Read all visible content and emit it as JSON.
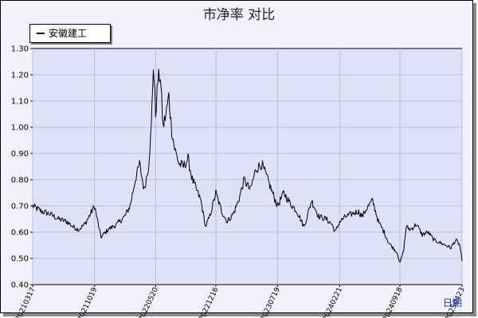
{
  "title": "市净率  对比",
  "legend": {
    "label": "安徽建工"
  },
  "x_unit_label": "日期",
  "colors": {
    "plot_bg": "#dde2f6",
    "grid": "#b7bde6",
    "line": "#000000",
    "frame_bg": "#f2f2fb"
  },
  "chart_data": {
    "type": "line",
    "title": "市净率  对比",
    "xlabel": "日期",
    "ylabel": "",
    "ylim": [
      0.4,
      1.3
    ],
    "yticks": [
      "0.40",
      "0.50",
      "0.60",
      "0.70",
      "0.80",
      "0.90",
      "1.00",
      "1.10",
      "1.20",
      "1.30"
    ],
    "xticks": [
      "20210317",
      "20211019",
      "20220520",
      "20221216",
      "20230719",
      "20240221",
      "20240918",
      "20250423"
    ],
    "grid": true,
    "legend_position": "top-left",
    "series": [
      {
        "name": "安徽建工",
        "x": [
          "2021-03-17",
          "2021-04-15",
          "2021-05-15",
          "2021-06-15",
          "2021-07-15",
          "2021-08-05",
          "2021-08-25",
          "2021-09-15",
          "2021-10-05",
          "2021-10-19",
          "2021-11-10",
          "2021-12-05",
          "2022-01-05",
          "2022-02-01",
          "2022-02-20",
          "2022-03-10",
          "2022-03-25",
          "2022-04-10",
          "2022-04-25",
          "2022-05-05",
          "2022-05-12",
          "2022-05-20",
          "2022-05-28",
          "2022-06-05",
          "2022-06-15",
          "2022-06-25",
          "2022-07-05",
          "2022-07-15",
          "2022-07-25",
          "2022-08-10",
          "2022-08-25",
          "2022-09-10",
          "2022-09-25",
          "2022-10-10",
          "2022-10-25",
          "2022-11-10",
          "2022-11-25",
          "2022-12-16",
          "2023-01-05",
          "2023-01-25",
          "2023-02-15",
          "2023-03-05",
          "2023-03-25",
          "2023-04-15",
          "2023-05-05",
          "2023-05-25",
          "2023-06-15",
          "2023-07-05",
          "2023-07-19",
          "2023-08-10",
          "2023-09-01",
          "2023-09-25",
          "2023-10-20",
          "2023-11-15",
          "2023-12-10",
          "2024-01-05",
          "2024-01-25",
          "2024-02-06",
          "2024-02-21",
          "2024-03-15",
          "2024-04-05",
          "2024-04-25",
          "2024-05-10",
          "2024-05-25",
          "2024-06-15",
          "2024-07-05",
          "2024-07-25",
          "2024-08-10",
          "2024-08-25",
          "2024-09-10",
          "2024-09-18",
          "2024-10-01",
          "2024-10-10",
          "2024-10-25",
          "2024-11-15",
          "2024-12-05",
          "2024-12-25",
          "2025-01-15",
          "2025-02-05",
          "2025-02-25",
          "2025-03-15",
          "2025-04-01",
          "2025-04-15",
          "2025-04-23"
        ],
        "values": [
          0.7,
          0.68,
          0.67,
          0.65,
          0.64,
          0.62,
          0.61,
          0.63,
          0.67,
          0.7,
          0.58,
          0.61,
          0.63,
          0.66,
          0.7,
          0.8,
          0.86,
          0.76,
          0.85,
          1.0,
          1.24,
          1.05,
          1.18,
          1.2,
          1.0,
          1.05,
          1.12,
          0.99,
          0.92,
          0.86,
          0.85,
          0.88,
          0.8,
          0.76,
          0.72,
          0.62,
          0.66,
          0.75,
          0.68,
          0.64,
          0.67,
          0.72,
          0.8,
          0.76,
          0.84,
          0.86,
          0.8,
          0.74,
          0.7,
          0.75,
          0.71,
          0.68,
          0.62,
          0.72,
          0.66,
          0.65,
          0.63,
          0.6,
          0.64,
          0.66,
          0.67,
          0.68,
          0.66,
          0.69,
          0.72,
          0.64,
          0.6,
          0.56,
          0.54,
          0.52,
          0.48,
          0.53,
          0.62,
          0.61,
          0.63,
          0.59,
          0.6,
          0.57,
          0.56,
          0.55,
          0.54,
          0.57,
          0.55,
          0.49
        ]
      }
    ]
  }
}
